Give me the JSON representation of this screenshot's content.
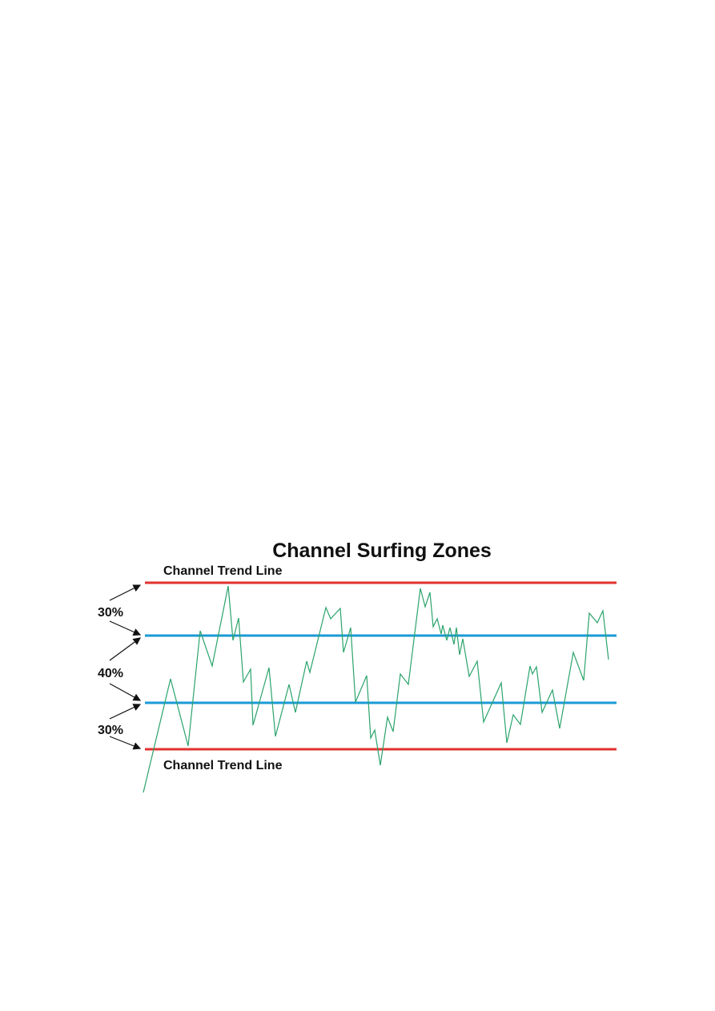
{
  "title": "Channel Surfing Zones",
  "upper_line_label": "Channel Trend Line",
  "lower_line_label": "Channel Trend Line",
  "zones": [
    "30%",
    "40%",
    "30%"
  ]
}
